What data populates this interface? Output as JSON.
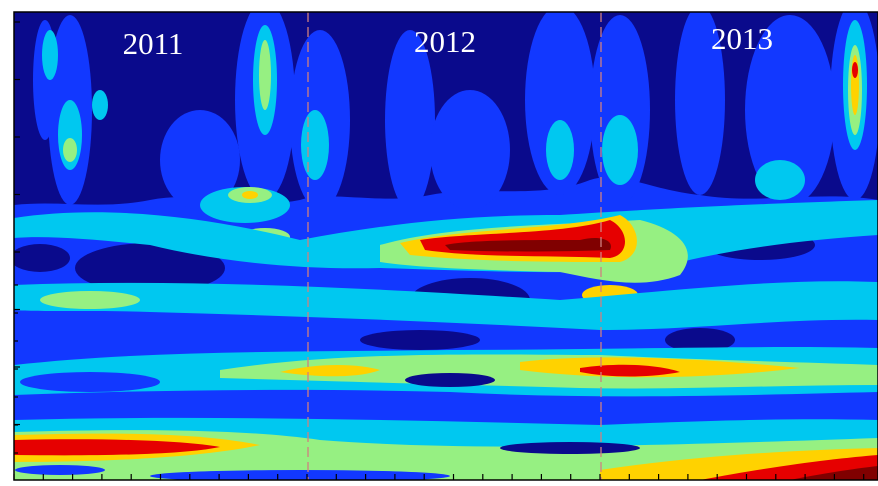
{
  "chart_data": {
    "type": "contour",
    "annotations": [
      "2011",
      "2012",
      "2013"
    ]
  }
}
